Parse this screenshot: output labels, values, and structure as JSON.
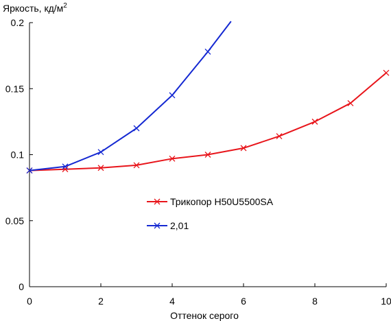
{
  "chart_data": {
    "type": "line",
    "ylabel": "Яркость, кд/м",
    "ylabel_sup": "2",
    "xlabel": "Оттенок серого",
    "xlim": [
      0,
      10
    ],
    "ylim": [
      0,
      0.2
    ],
    "xticks": [
      0,
      2,
      4,
      6,
      8,
      10
    ],
    "xtick_labels": [
      "0",
      "2",
      "4",
      "6",
      "8",
      "10"
    ],
    "yticks": [
      0,
      0.05,
      0.1,
      0.15,
      0.2
    ],
    "ytick_labels": [
      "0",
      "0.05",
      "0.1",
      "0.15",
      "0.2"
    ],
    "grid": false,
    "legend": "middle",
    "series": [
      {
        "name": "Трикопор H50U5500SA",
        "color": "#e8141a",
        "marker": "x",
        "x": [
          0,
          1,
          2,
          3,
          4,
          5,
          6,
          7,
          8,
          9,
          10
        ],
        "y": [
          0.088,
          0.089,
          0.09,
          0.092,
          0.097,
          0.1,
          0.105,
          0.114,
          0.125,
          0.139,
          0.162
        ]
      },
      {
        "name": "2,01",
        "color": "#1428d2",
        "marker": "x",
        "x": [
          0,
          1,
          2,
          3,
          4,
          5,
          5.65
        ],
        "y": [
          0.088,
          0.091,
          0.102,
          0.12,
          0.145,
          0.178,
          0.201
        ],
        "marker_count": 6
      }
    ]
  }
}
